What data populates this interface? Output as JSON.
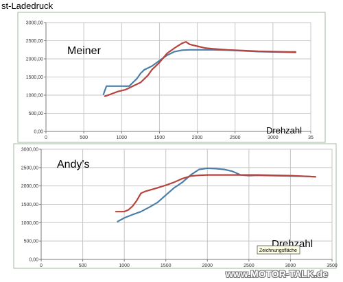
{
  "page_title": "st-Ladedruck",
  "watermark": "www.MOTOR-TALK.de",
  "colors": {
    "blue": "#4a7fa8",
    "red": "#b8433c",
    "grid": "#c6c6c6",
    "axis": "#7a7a7a",
    "frame": "#9fb89f"
  },
  "chart_data": [
    {
      "type": "line",
      "title": "Meiner",
      "xlabel": "Drehzahl",
      "ylabel": "",
      "xlim": [
        0,
        3500
      ],
      "ylim": [
        0,
        3000
      ],
      "x_ticks": [
        "0",
        "500",
        "1000",
        "1500",
        "2000",
        "2500",
        "3000",
        "35"
      ],
      "y_ticks": [
        "0,00",
        "500,00",
        "1000,00",
        "1500,00",
        "2000,00",
        "2500,00",
        "3000,00"
      ],
      "grid": true,
      "legend": "none",
      "series": [
        {
          "color": "blue",
          "x": [
            760,
            800,
            850,
            1000,
            1100,
            1150,
            1200,
            1250,
            1300,
            1400,
            1500,
            1600,
            1700,
            1800,
            1900,
            2000,
            2200,
            2400,
            2600,
            2800,
            3000,
            3300
          ],
          "y": [
            1020,
            1250,
            1250,
            1250,
            1250,
            1350,
            1450,
            1600,
            1700,
            1800,
            1950,
            2100,
            2200,
            2240,
            2250,
            2250,
            2250,
            2240,
            2220,
            2200,
            2190,
            2180
          ]
        },
        {
          "color": "red",
          "x": [
            780,
            850,
            950,
            1050,
            1150,
            1250,
            1350,
            1400,
            1500,
            1600,
            1700,
            1800,
            1850,
            1900,
            2000,
            2100,
            2200,
            2400,
            2600,
            2800,
            3000,
            3200,
            3300
          ],
          "y": [
            970,
            1020,
            1100,
            1150,
            1250,
            1350,
            1550,
            1700,
            1900,
            2150,
            2300,
            2430,
            2470,
            2400,
            2350,
            2300,
            2280,
            2250,
            2230,
            2210,
            2200,
            2190,
            2190
          ]
        }
      ]
    },
    {
      "type": "line",
      "title": "Andy's",
      "xlabel": "Drehzahl",
      "ylabel": "",
      "xlim": [
        0,
        3500
      ],
      "ylim": [
        0,
        3000
      ],
      "x_ticks": [
        "0",
        "500",
        "1000",
        "1500",
        "2000",
        "2500",
        "3000",
        "3500"
      ],
      "y_ticks": [
        "0,00",
        "500,00",
        "1000,00",
        "1500,00",
        "2000,00",
        "2500,00",
        "3000,00"
      ],
      "grid": true,
      "legend": "none",
      "tooltip": "Zeichnungsfläche",
      "series": [
        {
          "color": "blue",
          "x": [
            920,
            1000,
            1100,
            1200,
            1300,
            1400,
            1500,
            1600,
            1700,
            1800,
            1900,
            2000,
            2100,
            2200,
            2300,
            2400,
            2500,
            2600,
            2800,
            3000,
            3200,
            3300
          ],
          "y": [
            1030,
            1130,
            1220,
            1300,
            1420,
            1550,
            1750,
            1950,
            2100,
            2300,
            2450,
            2480,
            2470,
            2450,
            2400,
            2300,
            2280,
            2290,
            2280,
            2270,
            2260,
            2250
          ]
        },
        {
          "color": "red",
          "x": [
            900,
            1000,
            1050,
            1100,
            1150,
            1200,
            1250,
            1400,
            1500,
            1600,
            1700,
            1800,
            1900,
            2000,
            2200,
            2400,
            2600,
            2800,
            3000,
            3200,
            3300
          ],
          "y": [
            1300,
            1300,
            1350,
            1450,
            1600,
            1800,
            1850,
            1950,
            2020,
            2100,
            2200,
            2270,
            2290,
            2300,
            2300,
            2300,
            2300,
            2290,
            2280,
            2260,
            2250
          ]
        }
      ]
    }
  ]
}
